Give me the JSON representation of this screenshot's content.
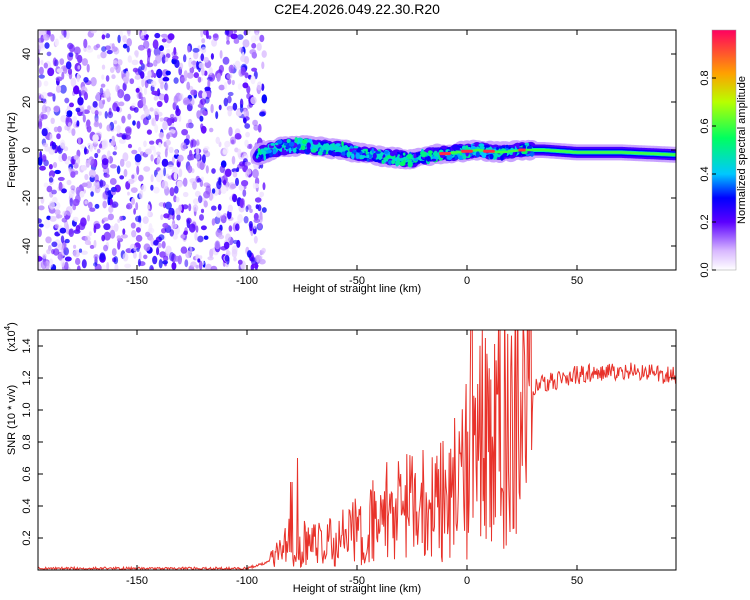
{
  "title": "C2E4.2026.049.22.30.R20",
  "chart_data": [
    {
      "type": "heatmap",
      "name": "spectrogram",
      "xlabel": "Height of straight line (km)",
      "ylabel": "Frequency (Hz)",
      "xlim": [
        -195,
        95
      ],
      "ylim": [
        -50,
        50
      ],
      "xticks": [
        -150,
        -100,
        -50,
        0,
        50
      ],
      "yticks": [
        -40,
        -20,
        0,
        20,
        40
      ],
      "noise_region_x": [
        -195,
        -95
      ],
      "signal_track": {
        "x": [
          -95,
          -85,
          -75,
          -65,
          -55,
          -45,
          -35,
          -25,
          -15,
          -5,
          5,
          15,
          25,
          35,
          50,
          70,
          95
        ],
        "freq": [
          -2,
          1,
          2,
          1,
          0,
          -2,
          -3,
          -4,
          -2,
          -1,
          0,
          -1,
          0,
          0,
          -1,
          -1,
          -2
        ]
      },
      "colorbar": {
        "label": "Normalized spectral amplitude",
        "range": [
          0,
          1
        ],
        "ticks": [
          0.0,
          0.2,
          0.4,
          0.6,
          0.8
        ]
      }
    },
    {
      "type": "line",
      "name": "snr",
      "xlabel": "Height of straight line (km)",
      "ylabel": "SNR (10 * v/v)",
      "scale_label": "(x10",
      "scale_exp": "4",
      "scale_close": ")",
      "xlim": [
        -195,
        95
      ],
      "ylim": [
        0,
        1.5
      ],
      "xticks": [
        -150,
        -100,
        -50,
        0,
        50
      ],
      "yticks": [
        0.2,
        0.4,
        0.6,
        0.8,
        1.0,
        1.2,
        1.4
      ],
      "color": "#e8322a",
      "key_points": {
        "x": [
          -195,
          -100,
          -90,
          -80,
          -70,
          -60,
          -50,
          -40,
          -30,
          -20,
          -10,
          0,
          10,
          20,
          30,
          50,
          70,
          95
        ],
        "y": [
          0.01,
          0.01,
          0.05,
          0.2,
          0.15,
          0.2,
          0.25,
          0.35,
          0.4,
          0.35,
          0.45,
          0.65,
          0.85,
          1.0,
          1.15,
          1.22,
          1.24,
          1.22
        ]
      }
    }
  ]
}
